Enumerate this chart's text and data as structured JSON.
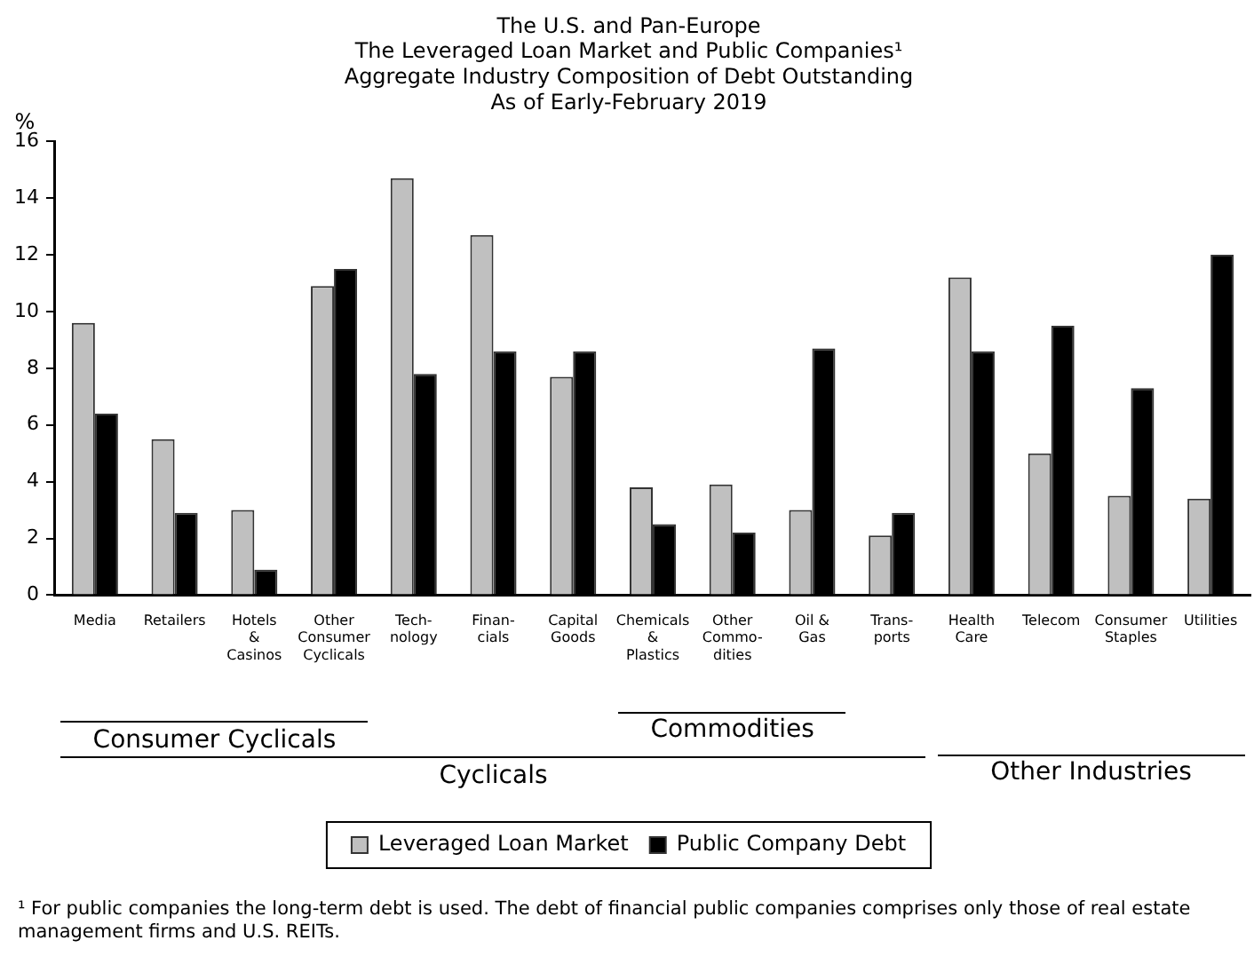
{
  "chart_data": {
    "type": "bar",
    "title": "The U.S. and Pan-Europe\nThe Leveraged Loan Market and Public Companies¹\nAggregate Industry Composition of Debt Outstanding\nAs of Early-February 2019",
    "ylabel": "%",
    "categories": [
      "Media",
      "Retailers",
      "Hotels\n&\nCasinos",
      "Other\nConsumer\nCyclicals",
      "Tech-\nnology",
      "Finan-\ncials",
      "Capital\nGoods",
      "Chemicals\n&\nPlastics",
      "Other\nCommo-\ndities",
      "Oil &\nGas",
      "Trans-\nports",
      "Health\nCare",
      "Telecom",
      "Consumer\nStaples",
      "Utilities"
    ],
    "series": [
      {
        "name": "Leveraged Loan Market",
        "color": "#c0c0c0",
        "values": [
          9.6,
          5.5,
          3.0,
          10.9,
          14.7,
          12.7,
          7.7,
          3.8,
          3.9,
          3.0,
          2.1,
          11.2,
          5.0,
          3.5,
          3.4
        ]
      },
      {
        "name": "Public Company Debt",
        "color": "#000000",
        "values": [
          6.4,
          2.9,
          0.9,
          11.5,
          7.8,
          8.6,
          8.6,
          2.5,
          2.2,
          8.7,
          2.9,
          8.6,
          9.5,
          7.3,
          12.0
        ]
      }
    ],
    "ylim": [
      0,
      16
    ],
    "yticks": [
      0,
      2,
      4,
      6,
      8,
      10,
      12,
      14,
      16
    ],
    "legend": "bottom",
    "annotations": [
      "Consumer Cyclicals",
      "Commodities",
      "Cyclicals",
      "Other Industries",
      "¹ For public companies the long-term debt is used.  The debt of financial public companies comprises only those of real estate management firms and U.S. REITs."
    ]
  }
}
